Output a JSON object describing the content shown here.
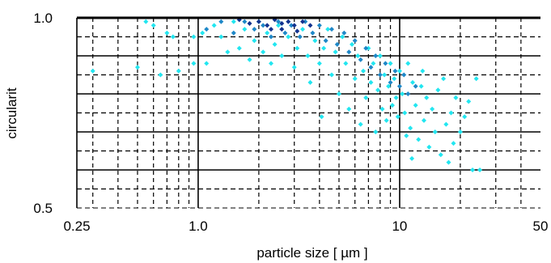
{
  "chart_data": {
    "type": "scatter",
    "title": "",
    "xlabel": "particle size  [ µm ]",
    "ylabel": "circularit",
    "xscale": "log",
    "xlim": [
      0.25,
      50
    ],
    "ylim": [
      0.5,
      1.0
    ],
    "grid": true,
    "x_ticks": [
      {
        "value": 0.25,
        "label": "0.25"
      },
      {
        "value": 1.0,
        "label": "1.0"
      },
      {
        "value": 10,
        "label": "10"
      },
      {
        "value": 50,
        "label": "50"
      }
    ],
    "y_ticks": [
      {
        "value": 1.0,
        "label": "1.0"
      },
      {
        "value": 0.5,
        "label": "0.5"
      }
    ],
    "colors": {
      "light": "#22e6f0",
      "mid": "#1e88c8",
      "dark": "#12338f",
      "grid": "#000000"
    },
    "series": [
      {
        "color_key": "light",
        "points": [
          [
            0.3,
            0.86
          ],
          [
            0.5,
            0.87
          ],
          [
            0.55,
            0.99
          ],
          [
            0.6,
            0.98
          ],
          [
            0.65,
            0.85
          ],
          [
            0.7,
            0.96
          ],
          [
            0.75,
            0.95
          ],
          [
            0.8,
            0.86
          ],
          [
            0.95,
            0.95
          ],
          [
            0.95,
            0.88
          ],
          [
            1.05,
            0.96
          ],
          [
            1.1,
            0.88
          ],
          [
            1.2,
            0.98
          ],
          [
            1.3,
            0.95
          ],
          [
            1.4,
            0.91
          ],
          [
            1.5,
            0.99
          ],
          [
            1.6,
            0.92
          ],
          [
            1.7,
            0.97
          ],
          [
            1.8,
            0.89
          ],
          [
            1.9,
            0.94
          ],
          [
            2.0,
            0.99
          ],
          [
            2.1,
            0.91
          ],
          [
            2.2,
            0.96
          ],
          [
            2.3,
            0.88
          ],
          [
            2.4,
            0.93
          ],
          [
            2.5,
            0.98
          ],
          [
            2.6,
            0.9
          ],
          [
            2.8,
            0.95
          ],
          [
            3.0,
            0.87
          ],
          [
            3.1,
            0.92
          ],
          [
            3.3,
            0.97
          ],
          [
            3.5,
            0.9
          ],
          [
            3.6,
            0.83
          ],
          [
            3.8,
            0.94
          ],
          [
            4.0,
            0.88
          ],
          [
            4.1,
            0.74
          ],
          [
            4.2,
            0.92
          ],
          [
            4.4,
            0.97
          ],
          [
            4.6,
            0.85
          ],
          [
            4.8,
            0.91
          ],
          [
            5.0,
            0.8
          ],
          [
            5.2,
            0.95
          ],
          [
            5.4,
            0.88
          ],
          [
            5.6,
            0.76
          ],
          [
            5.8,
            0.93
          ],
          [
            6.0,
            0.84
          ],
          [
            6.2,
            0.9
          ],
          [
            6.4,
            0.72
          ],
          [
            6.6,
            0.86
          ],
          [
            6.8,
            0.79
          ],
          [
            7.0,
            0.92
          ],
          [
            7.2,
            0.83
          ],
          [
            7.4,
            0.88
          ],
          [
            7.6,
            0.7
          ],
          [
            7.8,
            0.81
          ],
          [
            8.0,
            0.9
          ],
          [
            8.2,
            0.76
          ],
          [
            8.4,
            0.85
          ],
          [
            8.6,
            0.73
          ],
          [
            8.8,
            0.82
          ],
          [
            9.0,
            0.88
          ],
          [
            9.2,
            0.77
          ],
          [
            9.4,
            0.84
          ],
          [
            9.6,
            0.79
          ],
          [
            9.8,
            0.74
          ],
          [
            10.0,
            0.86
          ],
          [
            10.3,
            0.8
          ],
          [
            10.6,
            0.75
          ],
          [
            11.0,
            0.88
          ],
          [
            11.3,
            0.71
          ],
          [
            11.6,
            0.83
          ],
          [
            12.0,
            0.77
          ],
          [
            12.4,
            0.68
          ],
          [
            12.8,
            0.82
          ],
          [
            13.2,
            0.73
          ],
          [
            13.6,
            0.79
          ],
          [
            14.0,
            0.66
          ],
          [
            14.5,
            0.76
          ],
          [
            15.0,
            0.7
          ],
          [
            15.5,
            0.81
          ],
          [
            16.0,
            0.64
          ],
          [
            17.0,
            0.72
          ],
          [
            18.0,
            0.75
          ],
          [
            18.5,
            0.67
          ],
          [
            19.0,
            0.79
          ],
          [
            20.0,
            0.7
          ],
          [
            21.0,
            0.74
          ],
          [
            23.0,
            0.6
          ],
          [
            25.0,
            0.6
          ],
          [
            24.0,
            0.84
          ],
          [
            22.0,
            0.78
          ],
          [
            17.5,
            0.62
          ],
          [
            16.5,
            0.84
          ],
          [
            13.0,
            0.86
          ],
          [
            11.5,
            0.63
          ],
          [
            10.8,
            0.69
          ]
        ]
      },
      {
        "color_key": "mid",
        "points": [
          [
            1.1,
            0.97
          ],
          [
            1.3,
            0.99
          ],
          [
            1.5,
            0.96
          ],
          [
            1.7,
            0.99
          ],
          [
            1.9,
            0.97
          ],
          [
            2.1,
            0.98
          ],
          [
            2.3,
            0.95
          ],
          [
            2.5,
            0.99
          ],
          [
            2.7,
            0.96
          ],
          [
            2.9,
            0.98
          ],
          [
            3.2,
            0.95
          ],
          [
            3.4,
            0.99
          ],
          [
            3.7,
            0.96
          ],
          [
            4.0,
            0.98
          ],
          [
            4.3,
            0.94
          ],
          [
            4.6,
            0.97
          ],
          [
            4.9,
            0.93
          ],
          [
            5.3,
            0.96
          ],
          [
            5.6,
            0.91
          ],
          [
            6.0,
            0.94
          ],
          [
            6.4,
            0.89
          ],
          [
            6.8,
            0.92
          ],
          [
            7.2,
            0.87
          ],
          [
            7.6,
            0.9
          ],
          [
            8.0,
            0.85
          ],
          [
            8.5,
            0.88
          ],
          [
            9.0,
            0.83
          ],
          [
            9.5,
            0.86
          ],
          [
            10.0,
            0.82
          ],
          [
            10.5,
            0.85
          ],
          [
            11.0,
            0.8
          ],
          [
            12.0,
            0.82
          ]
        ]
      },
      {
        "color_key": "dark",
        "points": [
          [
            1.6,
            0.995
          ],
          [
            1.8,
            0.985
          ],
          [
            2.0,
            0.99
          ],
          [
            2.2,
            0.98
          ],
          [
            2.4,
            0.995
          ],
          [
            2.6,
            0.985
          ],
          [
            2.8,
            0.99
          ],
          [
            3.0,
            0.98
          ],
          [
            3.3,
            0.99
          ],
          [
            3.6,
            0.98
          ],
          [
            2.3,
            0.97
          ],
          [
            2.6,
            0.97
          ],
          [
            3.1,
            0.965
          ]
        ]
      }
    ]
  }
}
